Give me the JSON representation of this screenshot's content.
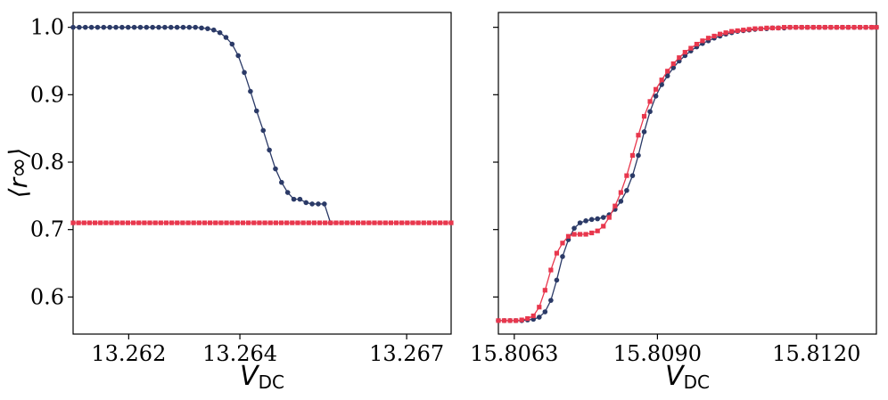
{
  "chart_data": [
    {
      "type": "line",
      "xlabel": "V",
      "xlabel_sub": "DC",
      "ylabel": "⟨r∞⟩",
      "xlim": [
        13.261,
        13.2678
      ],
      "ylim": [
        0.545,
        1.022
      ],
      "xticks": [
        13.262,
        13.264,
        13.267
      ],
      "xtick_labels": [
        "13.262",
        "13.264",
        "13.267"
      ],
      "yticks": [
        0.6,
        0.7,
        0.8,
        0.9,
        1.0
      ],
      "ytick_labels": [
        "0.6",
        "0.7",
        "0.8",
        "0.9",
        "1.0"
      ],
      "grid": false,
      "series": [
        {
          "color": "#2b3a67",
          "marker": "circle",
          "x": [
            13.261,
            13.26111,
            13.26122,
            13.26133,
            13.26144,
            13.26155,
            13.26166,
            13.26177,
            13.26188,
            13.26199,
            13.2621,
            13.26221,
            13.26232,
            13.26243,
            13.26254,
            13.26265,
            13.26276,
            13.26287,
            13.26298,
            13.26309,
            13.2632,
            13.26331,
            13.26342,
            13.26353,
            13.26364,
            13.26375,
            13.26386,
            13.26397,
            13.26408,
            13.26419,
            13.2643,
            13.26442,
            13.26453,
            13.26464,
            13.26475,
            13.26486,
            13.26497,
            13.26508,
            13.26519,
            13.2653,
            13.26541,
            13.26552,
            13.26563
          ],
          "y": [
            1.0,
            1.0,
            1.0,
            1.0,
            1.0,
            1.0,
            1.0,
            1.0,
            1.0,
            1.0,
            1.0,
            1.0,
            1.0,
            1.0,
            1.0,
            1.0,
            1.0,
            1.0,
            1.0,
            1.0,
            1.0,
            0.999,
            0.998,
            0.996,
            0.992,
            0.985,
            0.975,
            0.958,
            0.933,
            0.905,
            0.876,
            0.847,
            0.818,
            0.79,
            0.77,
            0.755,
            0.745,
            0.745,
            0.74,
            0.738,
            0.738,
            0.738,
            0.71
          ]
        },
        {
          "color": "#e8374d",
          "marker": "square",
          "x_start": 13.261,
          "x_end": 13.2678,
          "count": 70,
          "y_const": 0.71
        }
      ]
    },
    {
      "type": "line",
      "xlabel": "V",
      "xlabel_sub": "DC",
      "xlim": [
        15.806,
        15.81313
      ],
      "ylim": [
        0.545,
        1.022
      ],
      "xticks": [
        15.8063,
        15.809,
        15.812
      ],
      "xtick_labels": [
        "15.8063",
        "15.8090",
        "15.8120"
      ],
      "yticks": [
        0.6,
        0.7,
        0.8,
        0.9,
        1.0
      ],
      "grid": false,
      "series": [
        {
          "color": "#2b3a67",
          "marker": "circle",
          "x": [
            15.806,
            15.80611,
            15.80622,
            15.80633,
            15.80644,
            15.80655,
            15.80666,
            15.80677,
            15.80688,
            15.80699,
            15.8071,
            15.80721,
            15.80732,
            15.80743,
            15.80754,
            15.80765,
            15.80776,
            15.80787,
            15.80798,
            15.80809,
            15.8082,
            15.80831,
            15.80842,
            15.80853,
            15.80864,
            15.80875,
            15.80886,
            15.80897,
            15.80908,
            15.80919,
            15.8093,
            15.80941,
            15.80952,
            15.80963,
            15.80974,
            15.80985,
            15.80996,
            15.81007,
            15.81018,
            15.81029,
            15.8104,
            15.81051,
            15.81062,
            15.81073,
            15.81084,
            15.81095,
            15.81106,
            15.81117,
            15.81128,
            15.81139,
            15.8115,
            15.81161,
            15.81172,
            15.81183,
            15.81194,
            15.81205,
            15.81216,
            15.81227,
            15.81238,
            15.81249,
            15.8126,
            15.81271,
            15.81282,
            15.81293,
            15.81304,
            15.81313
          ],
          "y": [
            0.565,
            0.565,
            0.565,
            0.565,
            0.565,
            0.566,
            0.567,
            0.57,
            0.578,
            0.595,
            0.625,
            0.66,
            0.685,
            0.702,
            0.71,
            0.713,
            0.715,
            0.716,
            0.718,
            0.722,
            0.73,
            0.742,
            0.758,
            0.78,
            0.81,
            0.845,
            0.875,
            0.898,
            0.915,
            0.928,
            0.94,
            0.95,
            0.958,
            0.965,
            0.971,
            0.976,
            0.98,
            0.984,
            0.987,
            0.99,
            0.992,
            0.994,
            0.995,
            0.996,
            0.997,
            0.998,
            0.998,
            0.999,
            0.999,
            0.999,
            1.0,
            1.0,
            1.0,
            1.0,
            1.0,
            1.0,
            1.0,
            1.0,
            1.0,
            1.0,
            1.0,
            1.0,
            1.0,
            1.0,
            1.0,
            1.0
          ]
        },
        {
          "color": "#e8374d",
          "marker": "square",
          "x": [
            15.806,
            15.80611,
            15.80622,
            15.80633,
            15.80644,
            15.80655,
            15.80666,
            15.80677,
            15.80688,
            15.80699,
            15.8071,
            15.80721,
            15.80732,
            15.80743,
            15.80754,
            15.80765,
            15.80776,
            15.80787,
            15.80798,
            15.80809,
            15.8082,
            15.80831,
            15.80842,
            15.80853,
            15.80864,
            15.80875,
            15.80886,
            15.80897,
            15.80908,
            15.80919,
            15.8093,
            15.80941,
            15.80952,
            15.80963,
            15.80974,
            15.80985,
            15.80996,
            15.81007,
            15.81018,
            15.81029,
            15.8104,
            15.81051,
            15.81062,
            15.81073,
            15.81084,
            15.81095,
            15.81106,
            15.81117,
            15.81128,
            15.81139,
            15.8115,
            15.81161,
            15.81172,
            15.81183,
            15.81194,
            15.81205,
            15.81216,
            15.81227,
            15.81238,
            15.81249,
            15.8126,
            15.81271,
            15.81282,
            15.81293,
            15.81304,
            15.81313
          ],
          "y": [
            0.565,
            0.565,
            0.565,
            0.565,
            0.566,
            0.568,
            0.572,
            0.585,
            0.61,
            0.64,
            0.665,
            0.68,
            0.69,
            0.693,
            0.693,
            0.693,
            0.695,
            0.698,
            0.705,
            0.718,
            0.735,
            0.755,
            0.78,
            0.81,
            0.84,
            0.868,
            0.89,
            0.908,
            0.922,
            0.935,
            0.946,
            0.955,
            0.963,
            0.969,
            0.975,
            0.98,
            0.984,
            0.987,
            0.99,
            0.992,
            0.994,
            0.995,
            0.996,
            0.997,
            0.998,
            0.998,
            0.999,
            0.999,
            0.999,
            1.0,
            1.0,
            1.0,
            1.0,
            1.0,
            1.0,
            1.0,
            1.0,
            1.0,
            1.0,
            1.0,
            1.0,
            1.0,
            1.0,
            1.0,
            1.0,
            1.0
          ]
        }
      ]
    }
  ]
}
